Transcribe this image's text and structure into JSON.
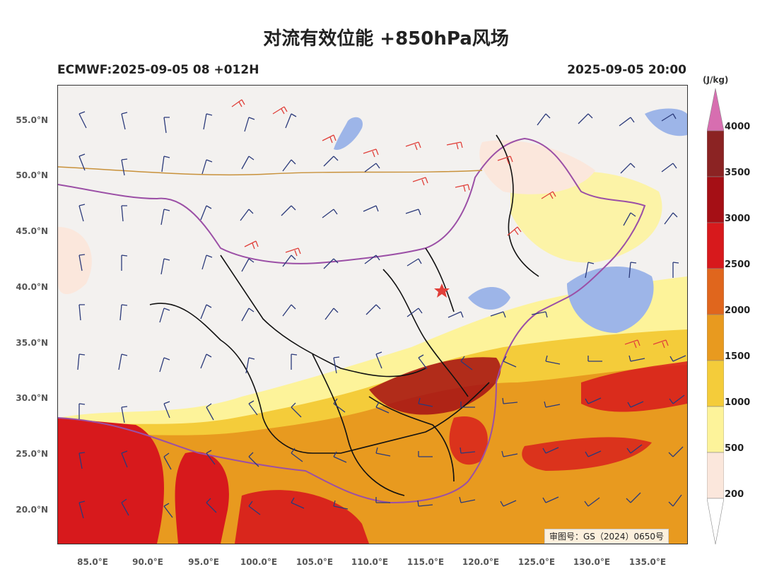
{
  "title": "对流有效位能 +850hPa风场",
  "model_run": "ECMWF:2025-09-05 08 +012H",
  "valid_time": "2025-09-05 20:00",
  "review_number": "审图号：GS（2024）0650号",
  "lat_labels": [
    "55.0°N",
    "50.0°N",
    "45.0°N",
    "40.0°N",
    "35.0°N",
    "30.0°N",
    "25.0°N",
    "20.0°N"
  ],
  "lon_labels": [
    "85.0°E",
    "90.0°E",
    "95.0°E",
    "100.0°E",
    "105.0°E",
    "110.0°E",
    "115.0°E",
    "120.0°E",
    "125.0°E",
    "130.0°E",
    "135.0°E"
  ],
  "colorbar": {
    "unit": "(J/kg)",
    "levels": [
      "4000",
      "3500",
      "3000",
      "2500",
      "2000",
      "1500",
      "1000",
      "500",
      "200"
    ],
    "colors": [
      "#8b2323",
      "#a50f15",
      "#d7191c",
      "#e0661d",
      "#e89a1f",
      "#f4cc3a",
      "#fdf39a",
      "#fbe7dc"
    ],
    "extend_top_color": "#d76eb0"
  },
  "map_legend": {
    "wind_normal_color": "#2b3a7a",
    "wind_strong_color": "#e0403a",
    "water_color": "#9db5e8",
    "boundary_color": "#9b4fa6",
    "province_color": "#111111"
  }
}
